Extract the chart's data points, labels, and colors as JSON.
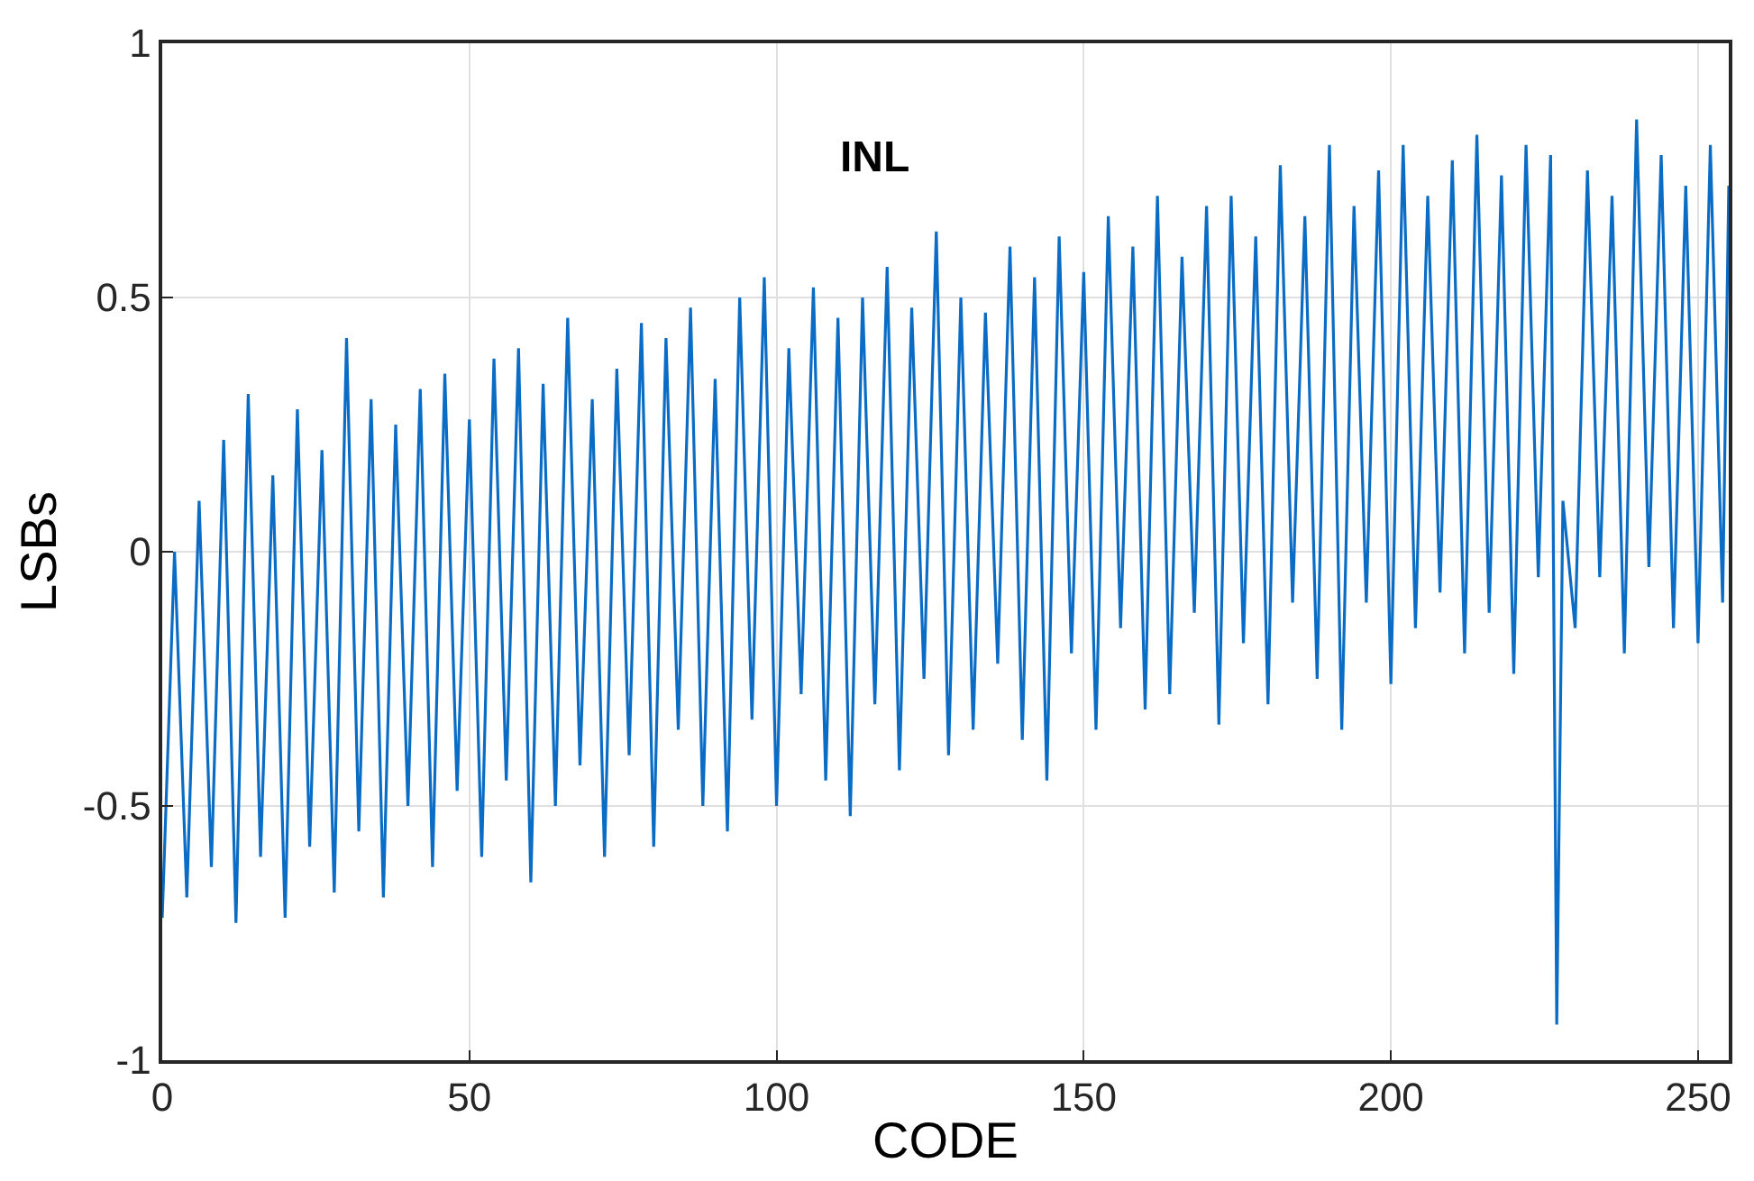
{
  "chart_data": {
    "type": "line",
    "xlabel": "CODE",
    "ylabel": "LSBs",
    "xlim": [
      0,
      255
    ],
    "xticks": [
      0,
      50,
      100,
      150,
      200,
      250
    ],
    "ylim": [
      -1,
      1
    ],
    "yticks": [
      -1,
      -0.5,
      0,
      0.5,
      1
    ],
    "grid": true,
    "line_style": "solid",
    "series": [
      {
        "name": "INL",
        "color": "#0a6cc4",
        "x": [
          0,
          2,
          4,
          6,
          8,
          10,
          12,
          14,
          16,
          18,
          20,
          22,
          24,
          26,
          28,
          30,
          32,
          34,
          36,
          38,
          40,
          42,
          44,
          46,
          48,
          50,
          52,
          54,
          56,
          58,
          60,
          62,
          64,
          66,
          68,
          70,
          72,
          74,
          76,
          78,
          80,
          82,
          84,
          86,
          88,
          90,
          92,
          94,
          96,
          98,
          100,
          102,
          104,
          106,
          108,
          110,
          112,
          114,
          116,
          118,
          120,
          122,
          124,
          126,
          128,
          130,
          132,
          134,
          136,
          138,
          140,
          142,
          144,
          146,
          148,
          150,
          152,
          154,
          156,
          158,
          160,
          162,
          164,
          166,
          168,
          170,
          172,
          174,
          176,
          178,
          180,
          182,
          184,
          186,
          188,
          190,
          192,
          194,
          196,
          198,
          200,
          202,
          204,
          206,
          208,
          210,
          212,
          214,
          216,
          218,
          220,
          222,
          224,
          226,
          227,
          228,
          230,
          232,
          234,
          236,
          238,
          240,
          242,
          244,
          246,
          248,
          250,
          252,
          254,
          255
        ],
        "values": [
          -0.72,
          0.0,
          -0.68,
          0.1,
          -0.62,
          0.22,
          -0.73,
          0.31,
          -0.6,
          0.15,
          -0.72,
          0.28,
          -0.58,
          0.2,
          -0.67,
          0.42,
          -0.55,
          0.3,
          -0.68,
          0.25,
          -0.5,
          0.32,
          -0.62,
          0.35,
          -0.47,
          0.26,
          -0.6,
          0.38,
          -0.45,
          0.4,
          -0.65,
          0.33,
          -0.5,
          0.46,
          -0.42,
          0.3,
          -0.6,
          0.36,
          -0.4,
          0.45,
          -0.58,
          0.42,
          -0.35,
          0.48,
          -0.5,
          0.34,
          -0.55,
          0.5,
          -0.33,
          0.54,
          -0.5,
          0.4,
          -0.28,
          0.52,
          -0.45,
          0.46,
          -0.52,
          0.5,
          -0.3,
          0.56,
          -0.43,
          0.48,
          -0.25,
          0.63,
          -0.4,
          0.5,
          -0.35,
          0.47,
          -0.22,
          0.6,
          -0.37,
          0.54,
          -0.45,
          0.62,
          -0.2,
          0.55,
          -0.35,
          0.66,
          -0.15,
          0.6,
          -0.31,
          0.7,
          -0.28,
          0.58,
          -0.12,
          0.68,
          -0.34,
          0.7,
          -0.18,
          0.62,
          -0.3,
          0.76,
          -0.1,
          0.66,
          -0.25,
          0.8,
          -0.35,
          0.68,
          -0.1,
          0.75,
          -0.26,
          0.8,
          -0.15,
          0.7,
          -0.08,
          0.77,
          -0.2,
          0.82,
          -0.12,
          0.74,
          -0.24,
          0.8,
          -0.05,
          0.78,
          -0.93,
          0.1,
          -0.15,
          0.75,
          -0.05,
          0.7,
          -0.2,
          0.85,
          -0.03,
          0.78,
          -0.15,
          0.72,
          -0.18,
          0.8,
          -0.1,
          0.72
        ]
      }
    ]
  }
}
